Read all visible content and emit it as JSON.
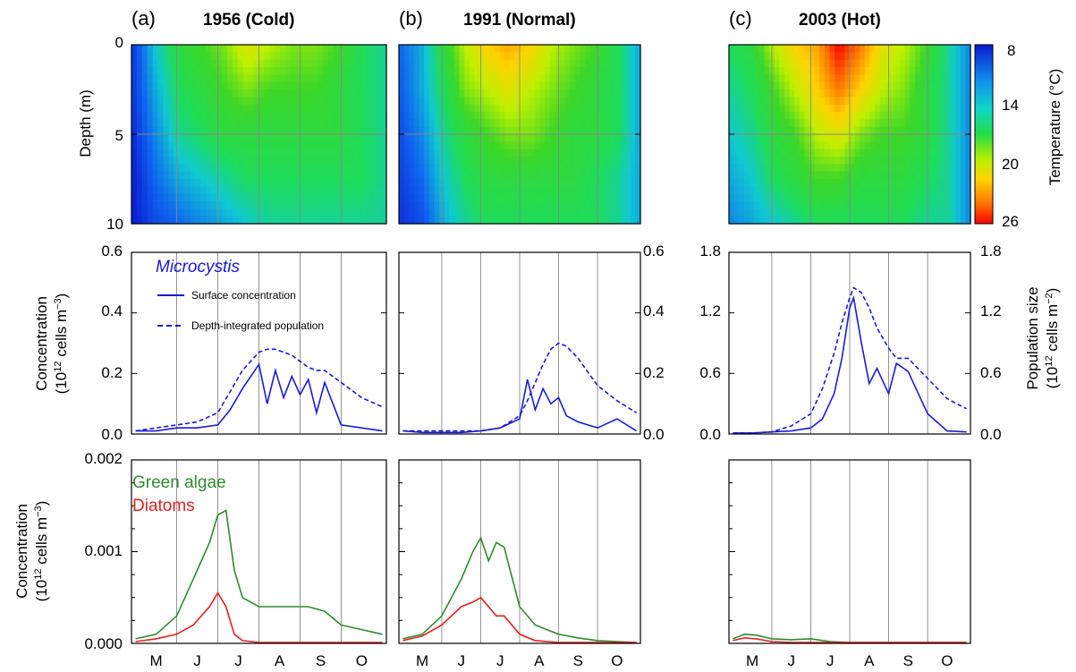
{
  "panel_titles": [
    {
      "label": "(a)",
      "title": "1956 (Cold)"
    },
    {
      "label": "(b)",
      "title": "1991 (Normal)"
    },
    {
      "label": "(c)",
      "title": "2003 (Hot)"
    }
  ],
  "month_labels": [
    "M",
    "J",
    "J",
    "A",
    "S",
    "O"
  ],
  "axis_labels": {
    "depth": "Depth (m)",
    "conc_line1": "Concentration",
    "conc_line2_pre": "(10",
    "conc_line2_sup": "12",
    "conc_line2_post": " cells m",
    "conc_line2_sup2": "−3",
    "conc_line2_end": ")",
    "pop_line1": "Population size",
    "pop_line2_pre": "(10",
    "pop_line2_sup": "12",
    "pop_line2_post": " cells m",
    "pop_line2_sup2": "−2",
    "pop_line2_end": ")",
    "colorbar_pre": "Temperature (",
    "colorbar_deg": "°",
    "colorbar_post": "C)"
  },
  "legend": {
    "microcystis": "Microcystis",
    "surface": "Surface concentration",
    "depth_integrated": "Depth-integrated population",
    "green": "Green algae",
    "diatoms": "Diatoms"
  },
  "ticks": {
    "depth": [
      "0",
      "5",
      "10"
    ],
    "colorbar": [
      "8",
      "14",
      "20",
      "26"
    ],
    "conc_left": [
      "0.0",
      "0.2",
      "0.4",
      "0.6"
    ],
    "conc_right": [
      "0.0",
      "0.2",
      "0.4",
      "0.6"
    ],
    "pop_left": [
      "0.0",
      "0.6",
      "1.2",
      "1.8"
    ],
    "pop_right": [
      "0.0",
      "0.6",
      "1.2",
      "1.8"
    ],
    "algae": [
      "0.000",
      "0.001",
      "0.002"
    ]
  },
  "colors": {
    "microcystis": "#1a1ad6",
    "green_algae": "#2e8b2e",
    "diatoms": "#e02020",
    "gridline": "#888888"
  },
  "chart_data": [
    {
      "type": "heatmap",
      "title": "1956 (Cold)",
      "ylabel": "Depth (m)",
      "x": [
        "M",
        "J",
        "J",
        "A",
        "S",
        "O"
      ],
      "ylim": [
        10,
        0
      ],
      "colorbar": {
        "label": "Temperature (°C)",
        "range": [
          8,
          26
        ],
        "ticks": [
          8,
          14,
          20,
          26
        ]
      },
      "depths_m": [
        0,
        2.5,
        5,
        7.5,
        10
      ],
      "temperature_c": [
        [
          9,
          14,
          17,
          18,
          19,
          21,
          20,
          19,
          19,
          18,
          16,
          15
        ],
        [
          9,
          13,
          16,
          17,
          18,
          19,
          18,
          18,
          18,
          17,
          16,
          15
        ],
        [
          8.5,
          12,
          15,
          16,
          17,
          17,
          17,
          17,
          17,
          17,
          16,
          15
        ],
        [
          8,
          11,
          13,
          14,
          15,
          16,
          16,
          16,
          16,
          16,
          16,
          15
        ],
        [
          8,
          10,
          11,
          12,
          13,
          14,
          15,
          15,
          15,
          15,
          15,
          15
        ]
      ]
    },
    {
      "type": "heatmap",
      "title": "1991 (Normal)",
      "x": [
        "M",
        "J",
        "J",
        "A",
        "S",
        "O"
      ],
      "ylim": [
        10,
        0
      ],
      "depths_m": [
        0,
        2.5,
        5,
        7.5,
        10
      ],
      "temperature_c": [
        [
          11,
          13,
          17,
          20,
          22,
          23,
          22,
          20,
          19,
          18,
          16,
          13
        ],
        [
          10.5,
          13,
          16,
          19,
          20,
          21,
          20,
          19,
          18,
          17,
          16,
          13
        ],
        [
          10,
          12,
          15,
          17,
          18,
          19,
          19,
          18,
          17,
          17,
          16,
          13
        ],
        [
          9.5,
          11,
          14,
          16,
          17,
          17,
          17,
          17,
          17,
          16,
          15,
          13
        ],
        [
          9,
          10,
          13,
          15,
          16,
          16,
          16,
          16,
          16,
          16,
          15,
          13
        ]
      ]
    },
    {
      "type": "heatmap",
      "title": "2003 (Hot)",
      "x": [
        "M",
        "J",
        "J",
        "A",
        "S",
        "O"
      ],
      "ylim": [
        10,
        0
      ],
      "depths_m": [
        0,
        2.5,
        5,
        7.5,
        10
      ],
      "temperature_c": [
        [
          16,
          17,
          20,
          22,
          23,
          26,
          24,
          21,
          20,
          18,
          15,
          12
        ],
        [
          15,
          16,
          18,
          20,
          22,
          24,
          22,
          20,
          19,
          17,
          15,
          12
        ],
        [
          14,
          15,
          17,
          18,
          20,
          21,
          19,
          18,
          18,
          17,
          15,
          12
        ],
        [
          13,
          14,
          16,
          17,
          18,
          18,
          17,
          17,
          17,
          16,
          15,
          12
        ],
        [
          12,
          13,
          14,
          15,
          16,
          16,
          16,
          16,
          16,
          15,
          15,
          12
        ]
      ]
    },
    {
      "type": "line",
      "panel": "1956 (Cold)",
      "ylabel": "Concentration (10^12 cells m^-3)",
      "ylim": [
        0,
        0.6
      ],
      "x_month_index": [
        0,
        0.5,
        1,
        1.5,
        2,
        2.3,
        2.6,
        3,
        3.2,
        3.4,
        3.6,
        3.8,
        4,
        4.2,
        4.4,
        4.6,
        5,
        5.5,
        6
      ],
      "series": [
        {
          "name": "Surface concentration",
          "values": [
            0.01,
            0.01,
            0.02,
            0.02,
            0.03,
            0.08,
            0.15,
            0.23,
            0.1,
            0.21,
            0.12,
            0.19,
            0.13,
            0.18,
            0.07,
            0.17,
            0.03,
            0.02,
            0.01
          ]
        },
        {
          "name": "Depth-integrated population",
          "values": [
            0.01,
            0.02,
            0.03,
            0.04,
            0.07,
            0.14,
            0.21,
            0.27,
            0.28,
            0.28,
            0.27,
            0.26,
            0.24,
            0.22,
            0.21,
            0.21,
            0.17,
            0.12,
            0.09
          ]
        }
      ]
    },
    {
      "type": "line",
      "panel": "1991 (Normal)",
      "ylim": [
        0,
        0.6
      ],
      "x_month_index": [
        0,
        0.5,
        1,
        1.5,
        2,
        2.5,
        3,
        3.2,
        3.4,
        3.6,
        3.8,
        4,
        4.2,
        4.5,
        5,
        5.5,
        6
      ],
      "series": [
        {
          "name": "Surface concentration",
          "values": [
            0.01,
            0.005,
            0.005,
            0.005,
            0.01,
            0.02,
            0.05,
            0.18,
            0.08,
            0.15,
            0.1,
            0.12,
            0.06,
            0.04,
            0.02,
            0.05,
            0.01
          ]
        },
        {
          "name": "Depth-integrated population",
          "values": [
            0.01,
            0.01,
            0.01,
            0.01,
            0.01,
            0.02,
            0.06,
            0.11,
            0.17,
            0.23,
            0.28,
            0.3,
            0.29,
            0.25,
            0.16,
            0.11,
            0.07
          ]
        }
      ]
    },
    {
      "type": "line",
      "panel": "2003 (Hot)",
      "ylabel": "Population size (10^12 cells m^-2)",
      "ylim": [
        0,
        1.8
      ],
      "x_month_index": [
        0,
        0.5,
        1,
        1.5,
        2,
        2.3,
        2.6,
        2.8,
        3,
        3.1,
        3.3,
        3.5,
        3.7,
        4,
        4.2,
        4.5,
        5,
        5.5,
        6
      ],
      "series": [
        {
          "name": "Surface concentration",
          "values": [
            0.01,
            0.01,
            0.02,
            0.03,
            0.06,
            0.15,
            0.4,
            0.75,
            1.25,
            1.35,
            0.9,
            0.5,
            0.65,
            0.4,
            0.7,
            0.62,
            0.2,
            0.03,
            0.02
          ]
        },
        {
          "name": "Depth-integrated population",
          "values": [
            0.01,
            0.01,
            0.02,
            0.08,
            0.2,
            0.45,
            0.8,
            1.1,
            1.35,
            1.45,
            1.4,
            1.25,
            1.05,
            0.85,
            0.75,
            0.75,
            0.55,
            0.35,
            0.25
          ]
        }
      ]
    },
    {
      "type": "line",
      "panel": "1956 (Cold)",
      "ylabel": "Concentration (10^12 cells m^-3)",
      "ylim": [
        0,
        0.002
      ],
      "x_month_index": [
        0,
        0.5,
        1,
        1.4,
        1.8,
        2,
        2.2,
        2.4,
        2.6,
        3,
        3.4,
        3.8,
        4.2,
        4.6,
        5,
        5.5,
        6
      ],
      "series": [
        {
          "name": "Green algae",
          "values": [
            5e-05,
            0.0001,
            0.0003,
            0.0007,
            0.0011,
            0.0014,
            0.00145,
            0.0008,
            0.0005,
            0.0004,
            0.0004,
            0.0004,
            0.0004,
            0.00035,
            0.0002,
            0.00015,
            0.0001
          ]
        },
        {
          "name": "Diatoms",
          "values": [
            2e-05,
            5e-05,
            0.0001,
            0.0002,
            0.0004,
            0.00055,
            0.0004,
            0.0001,
            3e-05,
            1e-05,
            1e-05,
            1e-05,
            1e-05,
            1e-05,
            1e-05,
            1e-05,
            1e-05
          ]
        }
      ]
    },
    {
      "type": "line",
      "panel": "1991 (Normal)",
      "ylim": [
        0,
        0.002
      ],
      "x_month_index": [
        0,
        0.5,
        1,
        1.5,
        1.8,
        2.0,
        2.2,
        2.4,
        2.6,
        3,
        3.4,
        4,
        4.5,
        5,
        5.5,
        6
      ],
      "series": [
        {
          "name": "Green algae",
          "values": [
            5e-05,
            0.0001,
            0.0003,
            0.0007,
            0.001,
            0.00115,
            0.0009,
            0.0011,
            0.00105,
            0.0004,
            0.0002,
            0.0001,
            6e-05,
            3e-05,
            2e-05,
            1e-05
          ]
        },
        {
          "name": "Diatoms",
          "values": [
            3e-05,
            8e-05,
            0.0002,
            0.0004,
            0.00045,
            0.0005,
            0.0004,
            0.0003,
            0.0003,
            0.0001,
            3e-05,
            1e-05,
            1e-05,
            1e-05,
            1e-05,
            1e-05
          ]
        }
      ]
    },
    {
      "type": "line",
      "panel": "2003 (Hot)",
      "ylim": [
        0,
        0.002
      ],
      "x_month_index": [
        0,
        0.3,
        0.6,
        1,
        1.5,
        2,
        2.5,
        3,
        4,
        5,
        6
      ],
      "series": [
        {
          "name": "Green algae",
          "values": [
            5e-05,
            0.0001,
            9e-05,
            5e-05,
            4e-05,
            5e-05,
            2e-05,
            1e-05,
            1e-05,
            1e-05,
            1e-05
          ]
        },
        {
          "name": "Diatoms",
          "values": [
            3e-05,
            6e-05,
            5e-05,
            2e-05,
            1e-05,
            1e-05,
            1e-05,
            1e-05,
            1e-05,
            1e-05,
            1e-05
          ]
        }
      ]
    }
  ]
}
